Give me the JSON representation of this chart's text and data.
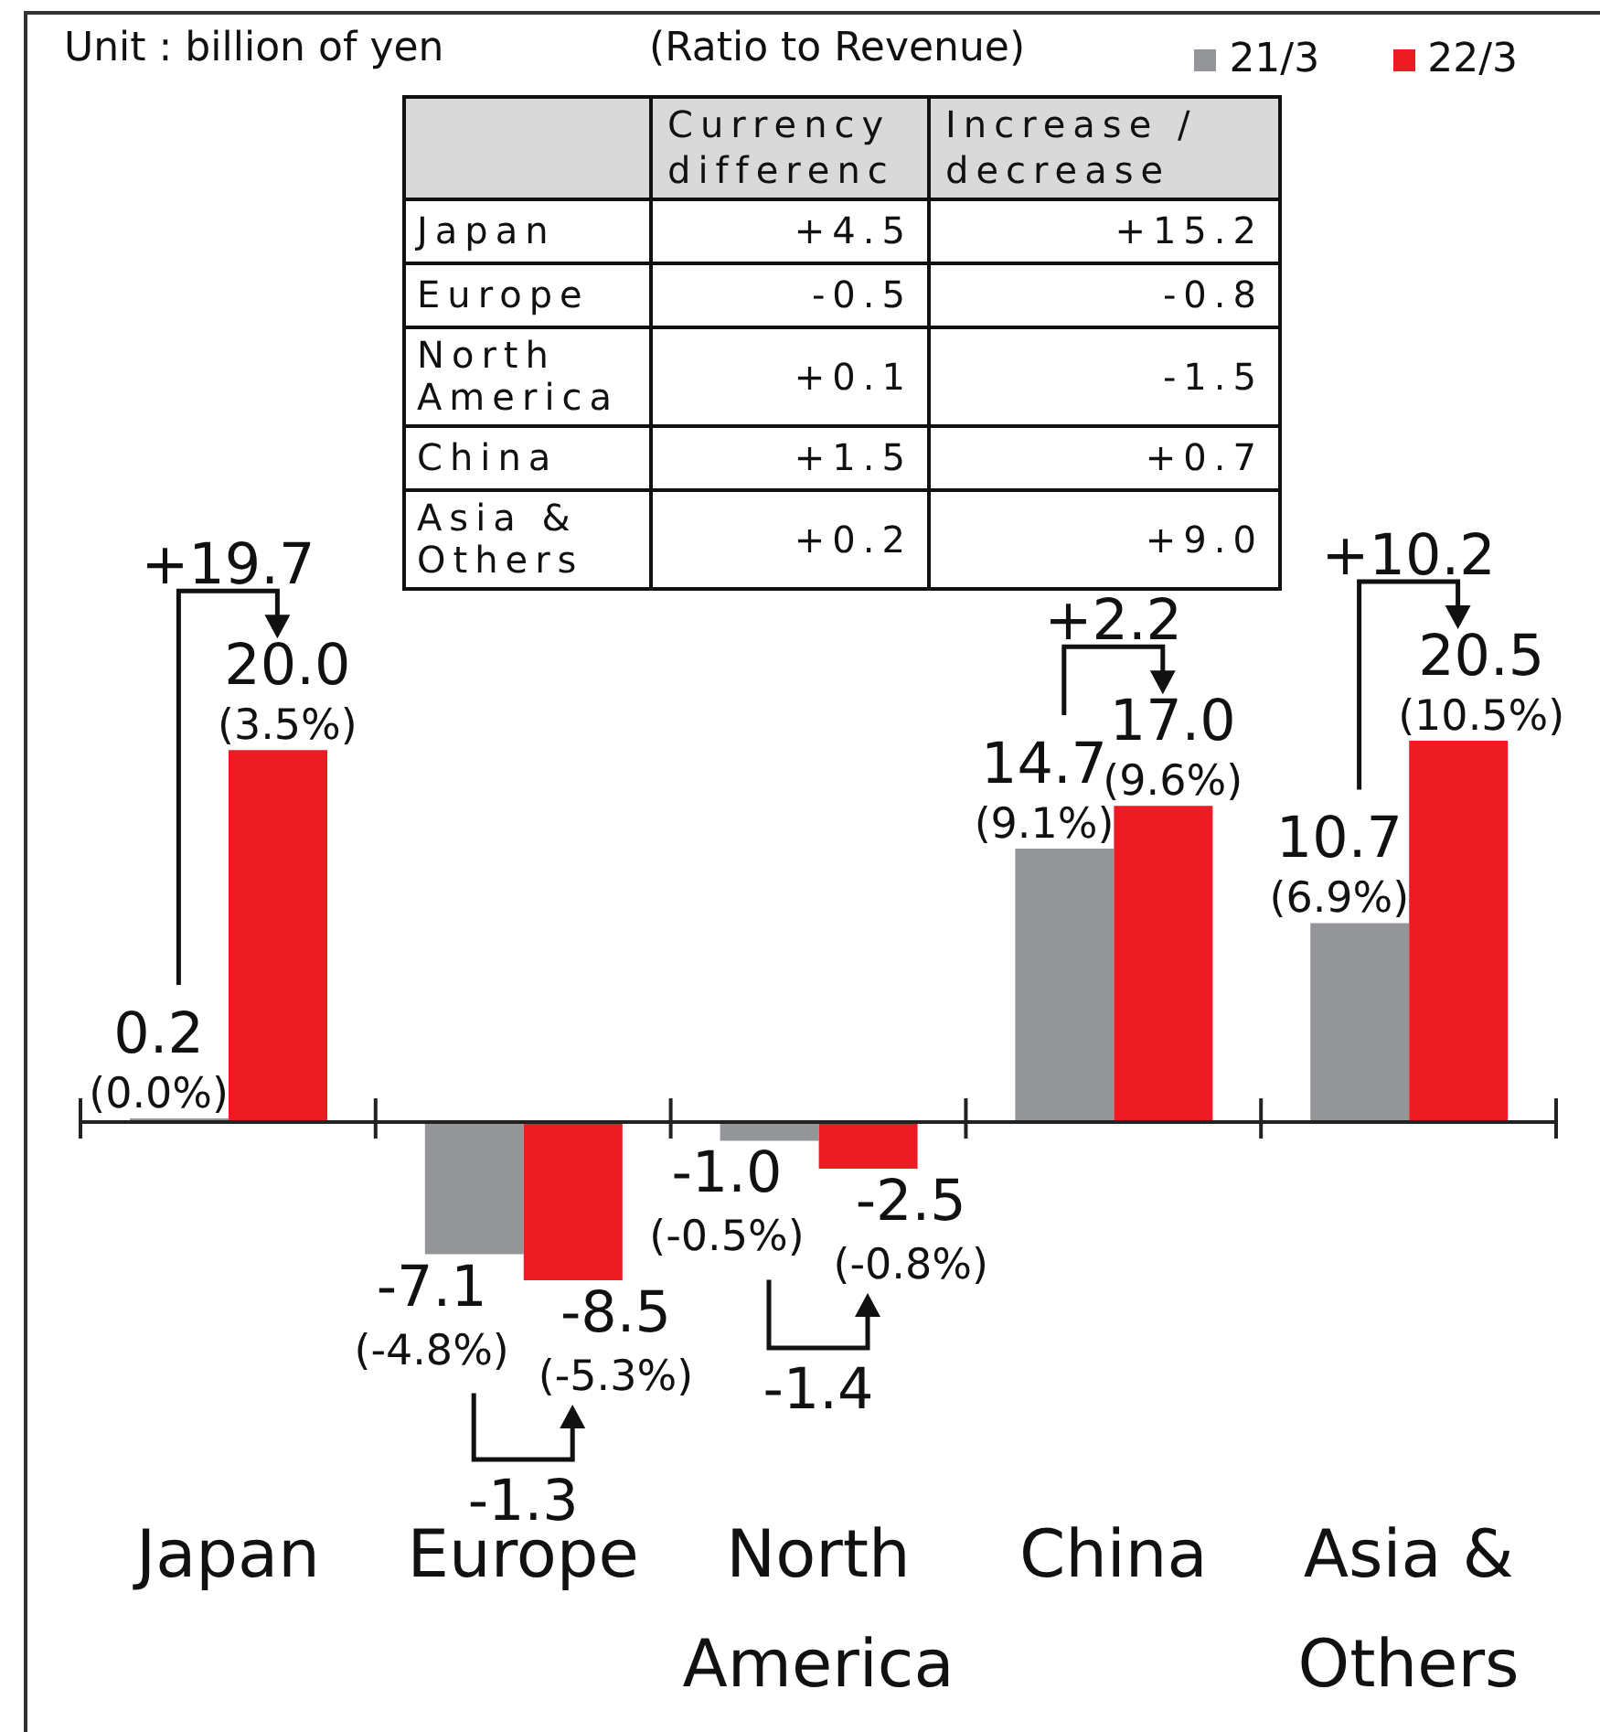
{
  "chart_data": [
    {
      "type": "bar",
      "annotations": [
        "Unit : billion of yen",
        "(Ratio to Revenue)",
        "+19.7",
        "-1.3",
        "-1.4",
        "+2.2",
        "+10.2"
      ],
      "categories": [
        "Japan",
        "Europe",
        "North America",
        "China",
        "Asia & Others"
      ],
      "series": [
        {
          "name": "21/3",
          "color": "#939598",
          "values": [
            0.2,
            -7.1,
            -1.0,
            14.7,
            10.7
          ],
          "value_labels": [
            "0.2\n(0.0%)",
            "-7.1\n(-4.8%)",
            "-1.0\n(-0.5%)",
            "14.7\n(9.1%)",
            "10.7\n(6.9%)"
          ]
        },
        {
          "name": "22/3",
          "color": "#ed1c24",
          "values": [
            20.0,
            -8.5,
            -2.5,
            17.0,
            20.5
          ],
          "value_labels": [
            "20.0\n(3.5%)",
            "-8.5\n(-5.3%)",
            "-2.5\n(-0.8%)",
            "17.0\n(9.6%)",
            "20.5\n(10.5%)"
          ]
        }
      ],
      "legend": "top right"
    },
    {
      "type": "other",
      "categories": [
        "Japan",
        "Europe",
        "North America",
        "China",
        "Asia & Others"
      ],
      "series": [
        {
          "name": "Currency differenc",
          "values": [
            4.5,
            -0.5,
            0.1,
            1.5,
            0.2
          ],
          "value_labels": [
            "+4.5",
            "-0.5",
            "+0.1",
            "+1.5",
            "+0.2"
          ]
        },
        {
          "name": "Increase / decrease",
          "values": [
            15.2,
            -0.8,
            -1.5,
            0.7,
            9.0
          ],
          "value_labels": [
            "+15.2",
            "-0.8",
            "-1.5",
            "+0.7",
            "+9.0"
          ]
        }
      ]
    }
  ]
}
